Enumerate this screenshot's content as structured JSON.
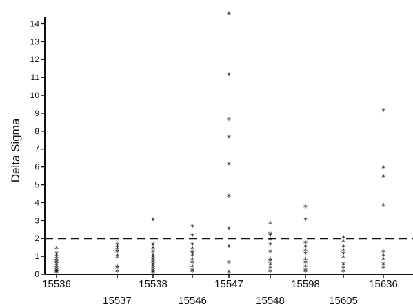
{
  "chart_data": {
    "type": "scatter",
    "title": "",
    "xlabel": "",
    "ylabel": "Delta Sigma",
    "ylim": [
      0,
      14
    ],
    "yticks": [
      0,
      1,
      2,
      3,
      4,
      5,
      6,
      7,
      8,
      9,
      10,
      11,
      12,
      13,
      14
    ],
    "categories": [
      "15536",
      "15537",
      "15538",
      "15546",
      "15547",
      "15548",
      "15598",
      "15605",
      "15636"
    ],
    "grid": false,
    "marker": "*",
    "reference_line": {
      "y": 2,
      "style": "dashed"
    },
    "series": [
      {
        "values": [
          [
            0.05,
            0.1,
            0.15,
            0.2,
            0.3,
            0.4,
            0.5,
            0.6,
            0.7,
            0.8,
            0.9,
            1.0,
            1.1,
            1.4
          ],
          [
            0.1,
            0.3,
            0.4,
            0.9,
            1.0,
            1.2,
            1.3,
            1.4,
            1.5,
            1.6
          ],
          [
            0.05,
            0.1,
            0.2,
            0.3,
            0.4,
            0.5,
            0.6,
            0.7,
            0.8,
            0.9,
            1.0,
            1.2,
            1.4,
            1.6,
            3.0
          ],
          [
            0.1,
            0.2,
            0.4,
            0.6,
            0.8,
            1.0,
            1.1,
            1.2,
            1.4,
            1.6,
            2.1,
            2.6
          ],
          [
            0.05,
            0.6,
            1.5,
            2.5,
            4.3,
            6.1,
            7.6,
            8.6,
            11.1,
            14.5
          ],
          [
            0.1,
            0.3,
            0.5,
            0.7,
            0.8,
            1.2,
            1.6,
            1.9,
            2.1,
            2.2,
            2.8
          ],
          [
            0.1,
            0.2,
            0.4,
            0.6,
            0.8,
            1.1,
            1.3,
            1.5,
            1.7,
            3.0,
            3.7
          ],
          [
            0.1,
            0.3,
            0.5,
            0.9,
            1.1,
            1.3,
            1.5,
            1.8,
            2.0
          ],
          [
            0.3,
            0.5,
            0.8,
            1.0,
            1.2,
            3.8,
            5.4,
            5.9,
            9.1
          ]
        ]
      }
    ]
  }
}
